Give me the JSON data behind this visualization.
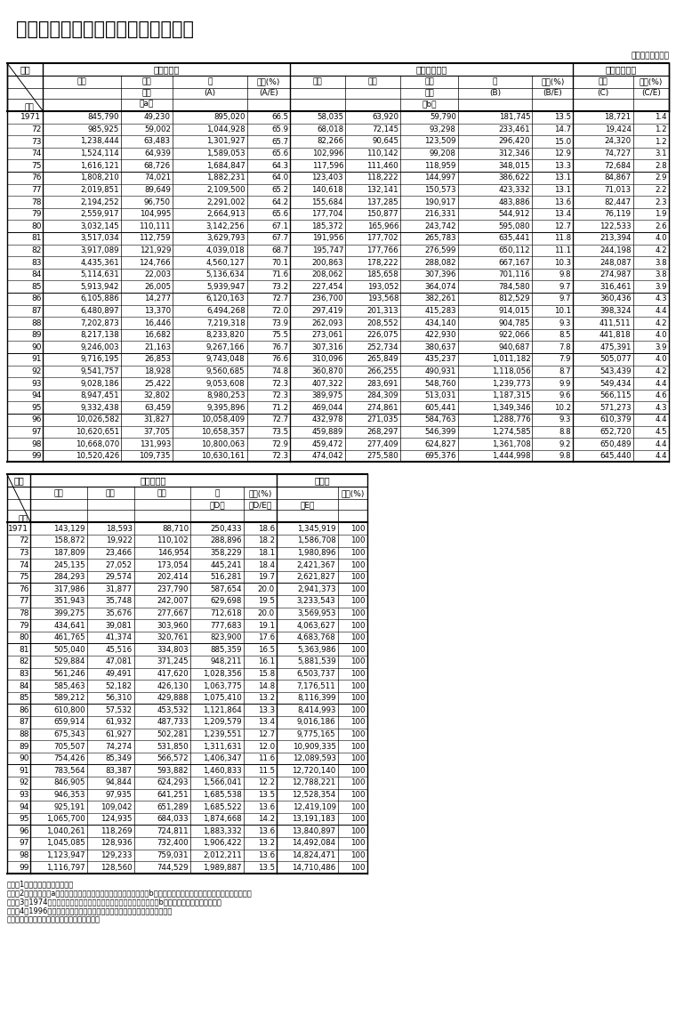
{
  "title": "（８）我が国の組織別研究費の推移",
  "unit_label": "（単位：百万円）",
  "rows_top": [
    [
      "1971",
      "845,790",
      "49,230",
      "895,020",
      "66.5",
      "58,035",
      "63,920",
      "59,790",
      "181,745",
      "13.5",
      "18,721",
      "1.4"
    ],
    [
      "72",
      "985,925",
      "59,002",
      "1,044,928",
      "65.9",
      "68,018",
      "72,145",
      "93,298",
      "233,461",
      "14.7",
      "19,424",
      "1.2"
    ],
    [
      "73",
      "1,238,444",
      "63,483",
      "1,301,927",
      "65.7",
      "82,266",
      "90,645",
      "123,509",
      "296,420",
      "15.0",
      "24,320",
      "1.2"
    ],
    [
      "74",
      "1,524,114",
      "64,939",
      "1,589,053",
      "65.6",
      "102,996",
      "110,142",
      "99,208",
      "312,346",
      "12.9",
      "74,727",
      "3.1"
    ],
    [
      "75",
      "1,616,121",
      "68,726",
      "1,684,847",
      "64.3",
      "117,596",
      "111,460",
      "118,959",
      "348,015",
      "13.3",
      "72,684",
      "2.8"
    ],
    [
      "76",
      "1,808,210",
      "74,021",
      "1,882,231",
      "64.0",
      "123,403",
      "118,222",
      "144,997",
      "386,622",
      "13.1",
      "84,867",
      "2.9"
    ],
    [
      "77",
      "2,019,851",
      "89,649",
      "2,109,500",
      "65.2",
      "140,618",
      "132,141",
      "150,573",
      "423,332",
      "13.1",
      "71,013",
      "2.2"
    ],
    [
      "78",
      "2,194,252",
      "96,750",
      "2,291,002",
      "64.2",
      "155,684",
      "137,285",
      "190,917",
      "483,886",
      "13.6",
      "82,447",
      "2.3"
    ],
    [
      "79",
      "2,559,917",
      "104,995",
      "2,664,913",
      "65.6",
      "177,704",
      "150,877",
      "216,331",
      "544,912",
      "13.4",
      "76,119",
      "1.9"
    ],
    [
      "80",
      "3,032,145",
      "110,111",
      "3,142,256",
      "67.1",
      "185,372",
      "165,966",
      "243,742",
      "595,080",
      "12.7",
      "122,533",
      "2.6"
    ],
    [
      "81",
      "3,517,034",
      "112,759",
      "3,629,793",
      "67.7",
      "191,956",
      "177,702",
      "265,783",
      "635,441",
      "11.8",
      "213,394",
      "4.0"
    ],
    [
      "82",
      "3,917,089",
      "121,929",
      "4,039,018",
      "68.7",
      "195,747",
      "177,766",
      "276,599",
      "650,112",
      "11.1",
      "244,198",
      "4.2"
    ],
    [
      "83",
      "4,435,361",
      "124,766",
      "4,560,127",
      "70.1",
      "200,863",
      "178,222",
      "288,082",
      "667,167",
      "10.3",
      "248,087",
      "3.8"
    ],
    [
      "84",
      "5,114,631",
      "22,003",
      "5,136,634",
      "71.6",
      "208,062",
      "185,658",
      "307,396",
      "701,116",
      "9.8",
      "274,987",
      "3.8"
    ],
    [
      "85",
      "5,913,942",
      "26,005",
      "5,939,947",
      "73.2",
      "227,454",
      "193,052",
      "364,074",
      "784,580",
      "9.7",
      "316,461",
      "3.9"
    ],
    [
      "86",
      "6,105,886",
      "14,277",
      "6,120,163",
      "72.7",
      "236,700",
      "193,568",
      "382,261",
      "812,529",
      "9.7",
      "360,436",
      "4.3"
    ],
    [
      "87",
      "6,480,897",
      "13,370",
      "6,494,268",
      "72.0",
      "297,419",
      "201,313",
      "415,283",
      "914,015",
      "10.1",
      "398,324",
      "4.4"
    ],
    [
      "88",
      "7,202,873",
      "16,446",
      "7,219,318",
      "73.9",
      "262,093",
      "208,552",
      "434,140",
      "904,785",
      "9.3",
      "411,511",
      "4.2"
    ],
    [
      "89",
      "8,217,138",
      "16,682",
      "8,233,820",
      "75.5",
      "273,061",
      "226,075",
      "422,930",
      "922,066",
      "8.5",
      "441,818",
      "4.0"
    ],
    [
      "90",
      "9,246,003",
      "21,163",
      "9,267,166",
      "76.7",
      "307,316",
      "252,734",
      "380,637",
      "940,687",
      "7.8",
      "475,391",
      "3.9"
    ],
    [
      "91",
      "9,716,195",
      "26,853",
      "9,743,048",
      "76.6",
      "310,096",
      "265,849",
      "435,237",
      "1,011,182",
      "7.9",
      "505,077",
      "4.0"
    ],
    [
      "92",
      "9,541,757",
      "18,928",
      "9,560,685",
      "74.8",
      "360,870",
      "266,255",
      "490,931",
      "1,118,056",
      "8.7",
      "543,439",
      "4.2"
    ],
    [
      "93",
      "9,028,186",
      "25,422",
      "9,053,608",
      "72.3",
      "407,322",
      "283,691",
      "548,760",
      "1,239,773",
      "9.9",
      "549,434",
      "4.4"
    ],
    [
      "94",
      "8,947,451",
      "32,802",
      "8,980,253",
      "72.3",
      "389,975",
      "284,309",
      "513,031",
      "1,187,315",
      "9.6",
      "566,115",
      "4.6"
    ],
    [
      "95",
      "9,332,438",
      "63,459",
      "9,395,896",
      "71.2",
      "469,044",
      "274,861",
      "605,441",
      "1,349,346",
      "10.2",
      "571,273",
      "4.3"
    ],
    [
      "96",
      "10,026,582",
      "31,827",
      "10,058,409",
      "72.7",
      "432,978",
      "271,035",
      "584,763",
      "1,288,776",
      "9.3",
      "610,379",
      "4.4"
    ],
    [
      "97",
      "10,620,651",
      "37,705",
      "10,658,357",
      "73.5",
      "459,889",
      "268,297",
      "546,399",
      "1,274,585",
      "8.8",
      "652,720",
      "4.5"
    ],
    [
      "98",
      "10,668,070",
      "131,993",
      "10,800,063",
      "72.9",
      "459,472",
      "277,409",
      "624,827",
      "1,361,708",
      "9.2",
      "650,489",
      "4.4"
    ],
    [
      "99",
      "10,520,426",
      "109,735",
      "10,630,161",
      "72.3",
      "474,042",
      "275,580",
      "695,376",
      "1,444,998",
      "9.8",
      "645,440",
      "4.4"
    ]
  ],
  "rows_bottom": [
    [
      "1971",
      "143,129",
      "18,593",
      "88,710",
      "250,433",
      "18.6",
      "1,345,919",
      "100"
    ],
    [
      "72",
      "158,872",
      "19,922",
      "110,102",
      "288,896",
      "18.2",
      "1,586,708",
      "100"
    ],
    [
      "73",
      "187,809",
      "23,466",
      "146,954",
      "358,229",
      "18.1",
      "1,980,896",
      "100"
    ],
    [
      "74",
      "245,135",
      "27,052",
      "173,054",
      "445,241",
      "18.4",
      "2,421,367",
      "100"
    ],
    [
      "75",
      "284,293",
      "29,574",
      "202,414",
      "516,281",
      "19.7",
      "2,621,827",
      "100"
    ],
    [
      "76",
      "317,986",
      "31,877",
      "237,790",
      "587,654",
      "20.0",
      "2,941,373",
      "100"
    ],
    [
      "77",
      "351,943",
      "35,748",
      "242,007",
      "629,698",
      "19.5",
      "3,233,543",
      "100"
    ],
    [
      "78",
      "399,275",
      "35,676",
      "277,667",
      "712,618",
      "20.0",
      "3,569,953",
      "100"
    ],
    [
      "79",
      "434,641",
      "39,081",
      "303,960",
      "777,683",
      "19.1",
      "4,063,627",
      "100"
    ],
    [
      "80",
      "461,765",
      "41,374",
      "320,761",
      "823,900",
      "17.6",
      "4,683,768",
      "100"
    ],
    [
      "81",
      "505,040",
      "45,516",
      "334,803",
      "885,359",
      "16.5",
      "5,363,986",
      "100"
    ],
    [
      "82",
      "529,884",
      "47,081",
      "371,245",
      "948,211",
      "16.1",
      "5,881,539",
      "100"
    ],
    [
      "83",
      "561,246",
      "49,491",
      "417,620",
      "1,028,356",
      "15.8",
      "6,503,737",
      "100"
    ],
    [
      "84",
      "585,463",
      "52,182",
      "426,130",
      "1,063,775",
      "14.8",
      "7,176,511",
      "100"
    ],
    [
      "85",
      "589,212",
      "56,310",
      "429,888",
      "1,075,410",
      "13.2",
      "8,116,399",
      "100"
    ],
    [
      "86",
      "610,800",
      "57,532",
      "453,532",
      "1,121,864",
      "13.3",
      "8,414,993",
      "100"
    ],
    [
      "87",
      "659,914",
      "61,932",
      "487,733",
      "1,209,579",
      "13.4",
      "9,016,186",
      "100"
    ],
    [
      "88",
      "675,343",
      "61,927",
      "502,281",
      "1,239,551",
      "12.7",
      "9,775,165",
      "100"
    ],
    [
      "89",
      "705,507",
      "74,274",
      "531,850",
      "1,311,631",
      "12.0",
      "10,909,335",
      "100"
    ],
    [
      "90",
      "754,426",
      "85,349",
      "566,572",
      "1,406,347",
      "11.6",
      "12,089,593",
      "100"
    ],
    [
      "91",
      "783,564",
      "83,387",
      "593,882",
      "1,460,833",
      "11.5",
      "12,720,140",
      "100"
    ],
    [
      "92",
      "846,905",
      "94,844",
      "624,293",
      "1,566,041",
      "12.2",
      "12,788,221",
      "100"
    ],
    [
      "93",
      "946,353",
      "97,935",
      "641,251",
      "1,685,538",
      "13.5",
      "12,528,354",
      "100"
    ],
    [
      "94",
      "925,191",
      "109,042",
      "651,289",
      "1,685,522",
      "13.6",
      "12,419,109",
      "100"
    ],
    [
      "95",
      "1,065,700",
      "124,935",
      "684,033",
      "1,874,668",
      "14.2",
      "13,191,183",
      "100"
    ],
    [
      "96",
      "1,040,261",
      "118,269",
      "724,811",
      "1,883,332",
      "13.6",
      "13,840,897",
      "100"
    ],
    [
      "97",
      "1,045,085",
      "128,936",
      "732,400",
      "1,906,422",
      "13.2",
      "14,492,084",
      "100"
    ],
    [
      "98",
      "1,123,947",
      "129,233",
      "759,031",
      "2,012,211",
      "13.6",
      "14,824,471",
      "100"
    ],
    [
      "99",
      "1,116,797",
      "128,560",
      "744,529",
      "1,989,887",
      "13.5",
      "14,710,486",
      "100"
    ]
  ],
  "notes": [
    "（注）1．自然科学のみである。",
    "　　　2．特殊法人（a）は設立採算性を有しているもの、特殊法人（b）は設立採算性を維持されていないものである。",
    "　　　3．1974年度に工業技術研究組合に基づく技術組合を特殊法人（b）から民営に分類換えした。",
    "　　　4．1996年度から新たにソウトウェア業が調査対象産業となっている。",
    "資料：総務省統計局「科学技術研究調査報告」"
  ]
}
